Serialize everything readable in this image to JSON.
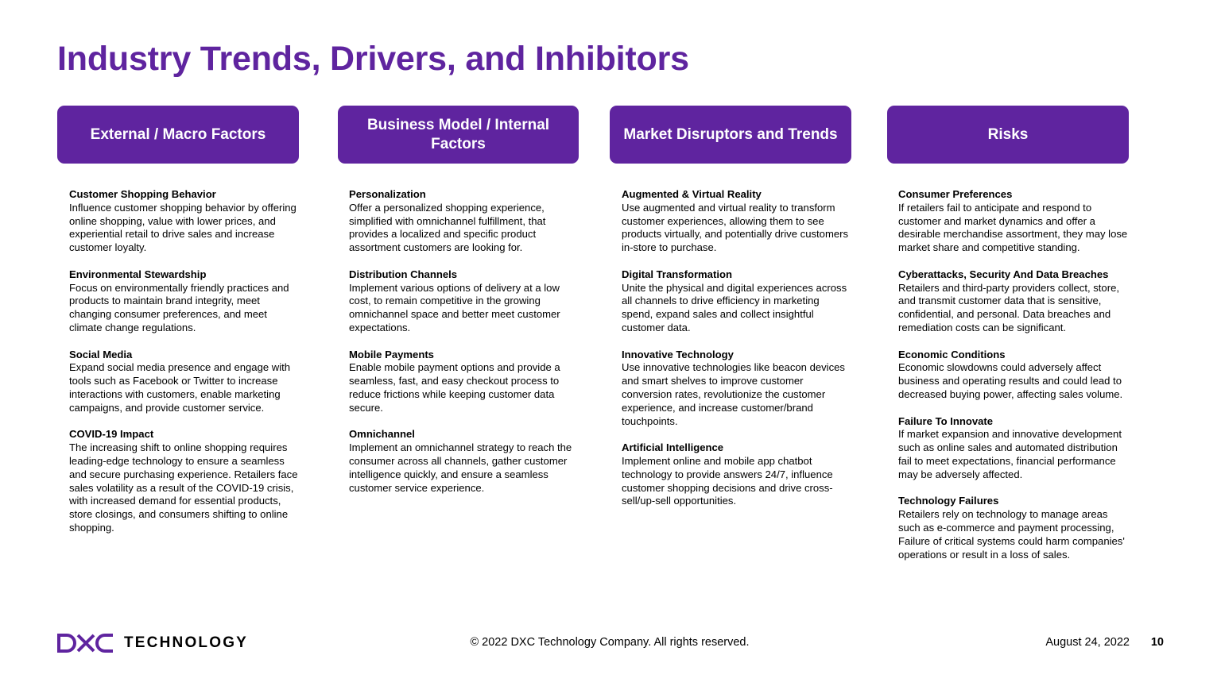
{
  "title": "Industry Trends, Drivers, and Inhibitors",
  "columns": [
    {
      "header": "External / Macro Factors",
      "items": [
        {
          "title": "Customer Shopping Behavior",
          "text": "Influence customer shopping behavior by offering online shopping, value with lower prices, and experiential retail to drive sales and increase customer loyalty."
        },
        {
          "title": "Environmental Stewardship",
          "text": "Focus on environmentally friendly practices and products to maintain brand integrity, meet changing consumer preferences, and meet climate change regulations."
        },
        {
          "title": "Social Media",
          "text": "Expand social media presence and engage with tools such as Facebook or Twitter to increase interactions with customers, enable marketing campaigns, and provide customer service."
        },
        {
          "title": "COVID-19 Impact",
          "text": "The increasing shift to online shopping requires leading-edge technology to ensure a seamless and secure purchasing experience. Retailers face sales volatility as a result of the COVID-19 crisis, with increased demand for essential products, store closings, and consumers shifting to online shopping."
        }
      ]
    },
    {
      "header": "Business Model / Internal Factors",
      "items": [
        {
          "title": "Personalization",
          "text": "Offer a personalized shopping experience, simplified with omnichannel fulfillment, that provides a localized and specific product assortment customers are looking for."
        },
        {
          "title": "Distribution Channels",
          "text": "Implement various options of delivery at a low cost, to remain competitive in the growing omnichannel space and better meet customer expectations."
        },
        {
          "title": "Mobile Payments",
          "text": "Enable mobile payment options and provide a seamless, fast, and easy checkout process to reduce frictions while keeping customer data secure."
        },
        {
          "title": "Omnichannel",
          "text": "Implement an omnichannel strategy to reach the consumer across all channels, gather customer intelligence quickly, and ensure a seamless customer service experience."
        }
      ]
    },
    {
      "header": "Market Disruptors and Trends",
      "items": [
        {
          "title": "Augmented & Virtual Reality",
          "text": "Use augmented and virtual reality to transform customer experiences, allowing them to see products virtually, and potentially drive customers in-store to purchase."
        },
        {
          "title": "Digital Transformation",
          "text": "Unite the physical and digital experiences across all channels to drive efficiency in marketing spend, expand sales and collect insightful customer data."
        },
        {
          "title": "Innovative Technology",
          "text": "Use innovative technologies like beacon devices and smart shelves to improve customer conversion rates, revolutionize the customer experience, and increase customer/brand touchpoints."
        },
        {
          "title": "Artificial Intelligence",
          "text": "Implement online and mobile app chatbot technology to provide answers 24/7, influence customer shopping decisions and drive cross-sell/up-sell opportunities."
        }
      ]
    },
    {
      "header": "Risks",
      "items": [
        {
          "title": "Consumer Preferences",
          "text": "If retailers fail to anticipate and respond to customer and market dynamics and offer a desirable merchandise assortment, they may lose market share and competitive standing."
        },
        {
          "title": "Cyberattacks, Security And Data Breaches",
          "text": "Retailers and third-party providers collect, store, and transmit customer data that is sensitive, confidential, and personal. Data breaches and remediation costs can be significant."
        },
        {
          "title": "Economic Conditions",
          "text": "Economic slowdowns could adversely affect business and operating results and could lead to decreased buying power, affecting sales volume."
        },
        {
          "title": "Failure To Innovate",
          "text": "If market expansion and innovative development such as online sales and automated distribution fail to meet expectations, financial performance may be adversely affected."
        },
        {
          "title": "Technology Failures",
          "text": "Retailers rely on technology to manage areas such as e-commerce and payment processing, Failure of critical systems could harm companies' operations or result in a loss of sales."
        }
      ]
    }
  ],
  "footer": {
    "logo_text": "TECHNOLOGY",
    "logo_icon": "dxc-logo-icon",
    "copyright": "© 2022 DXC Technology Company. All rights reserved.",
    "date": "August 24, 2022",
    "page": "10"
  },
  "colors": {
    "accent": "#5f249f",
    "text": "#000000",
    "background": "#ffffff"
  }
}
